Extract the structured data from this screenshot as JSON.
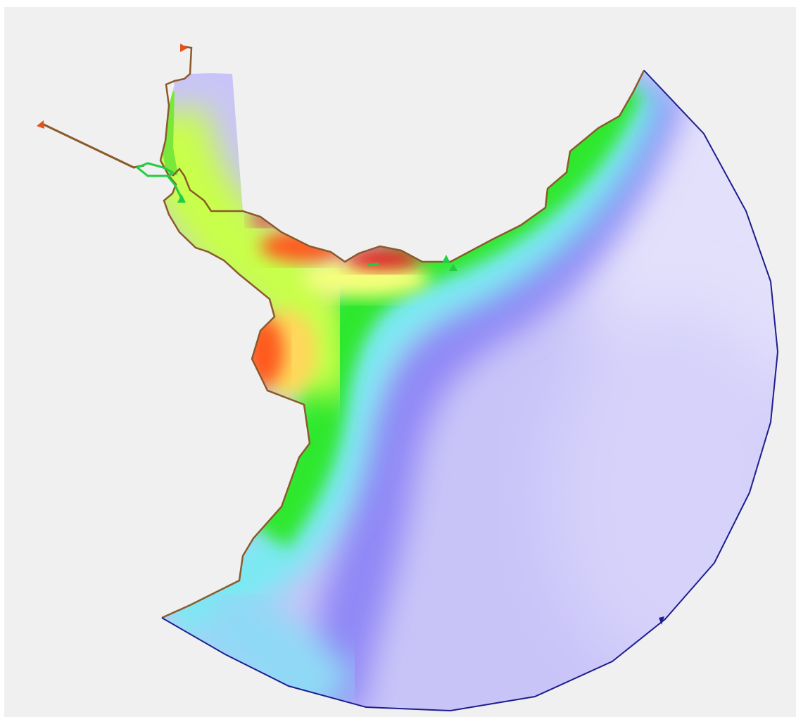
{
  "map": {
    "background_color": "#f0f0f0",
    "land_boundary_color": "#8b5a2b",
    "open_boundary_color": "#1e1e8c",
    "node_marker_color": "#e8501a",
    "channel_color": "#22cc44",
    "colormap": [
      "#e0003c",
      "#ff4a1a",
      "#ffd24a",
      "#c8ff4a",
      "#2ce62c",
      "#6ff3ee",
      "#8a88fa",
      "#b9b3f8",
      "#e3e0fb"
    ],
    "markers": [
      {
        "icon": "flag-marker-icon",
        "color": "#e8501a"
      },
      {
        "icon": "flag-marker-icon",
        "color": "#e8501a"
      },
      {
        "icon": "triangle-marker-icon",
        "color": "#22cc44"
      },
      {
        "icon": "triangle-marker-icon",
        "color": "#22cc44"
      },
      {
        "icon": "triangle-marker-icon",
        "color": "#22cc44"
      },
      {
        "icon": "triangle-marker-icon",
        "color": "#1e1e8c"
      }
    ]
  }
}
